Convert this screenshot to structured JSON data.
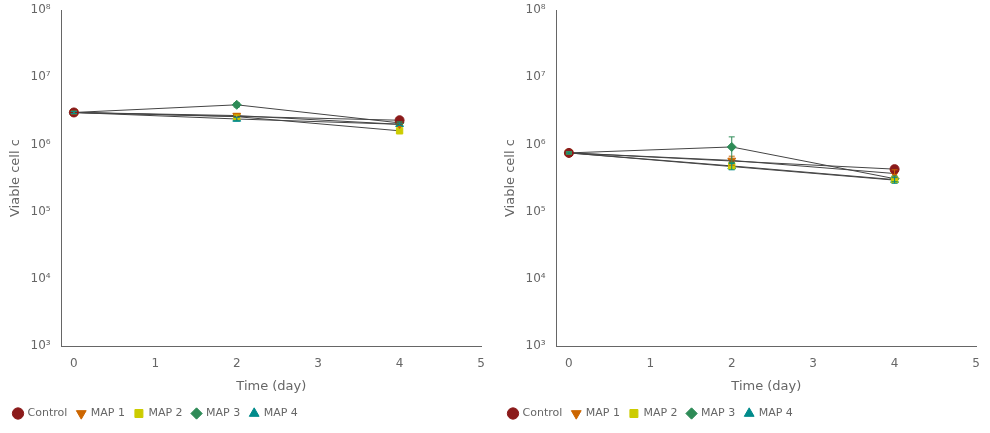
{
  "chart_data": [
    {
      "type": "line",
      "xlabel": "Time (day)",
      "ylabel": "Viable cell c",
      "log": "y",
      "grid": false,
      "legend": "lower left",
      "xlim": [
        -0.15,
        5
      ],
      "xticks": [
        0,
        1,
        2,
        3,
        4,
        5
      ],
      "ylim": [
        1000,
        100000000
      ],
      "yticks": [
        {
          "value": 1000,
          "label": "10³"
        },
        {
          "value": 10000,
          "label": "10⁴"
        },
        {
          "value": 100000,
          "label": "10⁵"
        },
        {
          "value": 1000000,
          "label": "10⁶"
        },
        {
          "value": 10000000,
          "label": "10⁷"
        },
        {
          "value": 100000000,
          "label": "10⁸"
        }
      ],
      "series": [
        {
          "name": "Control",
          "color": "#8B1A1A",
          "marker": "circle",
          "x": [
            0,
            4
          ],
          "values": [
            3000000,
            2300000
          ],
          "yerr": [
            120000,
            80000
          ]
        },
        {
          "name": "MAP 1",
          "color": "#CC6600",
          "marker": "triangle_down",
          "x": [
            0,
            2,
            4
          ],
          "values": [
            3000000,
            2700000,
            2000000
          ],
          "yerr": [
            120000,
            180000,
            80000
          ]
        },
        {
          "name": "MAP 2",
          "color": "#CCCC00",
          "marker": "square",
          "x": [
            0,
            2,
            4
          ],
          "values": [
            3000000,
            2600000,
            1600000
          ],
          "yerr": [
            120000,
            150000,
            80000
          ]
        },
        {
          "name": "MAP 3",
          "color": "#2E8B57",
          "marker": "diamond",
          "x": [
            0,
            2,
            4
          ],
          "values": [
            3000000,
            3900000,
            2100000
          ],
          "yerr": [
            120000,
            280000,
            80000
          ]
        },
        {
          "name": "MAP 4",
          "color": "#008B8B",
          "marker": "triangle_up",
          "x": [
            0,
            2,
            4
          ],
          "values": [
            3000000,
            2400000,
            2000000
          ],
          "yerr": [
            120000,
            150000,
            80000
          ]
        }
      ]
    },
    {
      "type": "line",
      "xlabel": "Time (day)",
      "ylabel": "Viable cell c",
      "log": "y",
      "grid": false,
      "legend": "lower left",
      "xlim": [
        -0.15,
        5
      ],
      "xticks": [
        0,
        1,
        2,
        3,
        4,
        5
      ],
      "ylim": [
        1000,
        100000000
      ],
      "yticks": [
        {
          "value": 1000,
          "label": "10³"
        },
        {
          "value": 10000,
          "label": "10⁴"
        },
        {
          "value": 100000,
          "label": "10⁵"
        },
        {
          "value": 1000000,
          "label": "10⁶"
        },
        {
          "value": 10000000,
          "label": "10⁷"
        },
        {
          "value": 100000000,
          "label": "10⁸"
        }
      ],
      "series": [
        {
          "name": "Control",
          "color": "#8B1A1A",
          "marker": "circle",
          "x": [
            0,
            4
          ],
          "values": [
            750000,
            430000
          ],
          "yerr": [
            25000,
            50000
          ]
        },
        {
          "name": "MAP 1",
          "color": "#CC6600",
          "marker": "triangle_down",
          "x": [
            0,
            2,
            4
          ],
          "values": [
            750000,
            580000,
            370000
          ],
          "yerr": [
            25000,
            90000,
            50000
          ]
        },
        {
          "name": "MAP 2",
          "color": "#CCCC00",
          "marker": "square",
          "x": [
            0,
            2,
            4
          ],
          "values": [
            750000,
            480000,
            300000
          ],
          "yerr": [
            25000,
            50000,
            30000
          ]
        },
        {
          "name": "MAP 3",
          "color": "#2E8B57",
          "marker": "diamond",
          "x": [
            0,
            2,
            4
          ],
          "values": [
            750000,
            920000,
            310000
          ],
          "yerr": [
            25000,
            380000,
            30000
          ]
        },
        {
          "name": "MAP 4",
          "color": "#008B8B",
          "marker": "triangle_up",
          "x": [
            0,
            2,
            4
          ],
          "values": [
            750000,
            470000,
            295000
          ],
          "yerr": [
            25000,
            50000,
            30000
          ]
        }
      ]
    }
  ]
}
